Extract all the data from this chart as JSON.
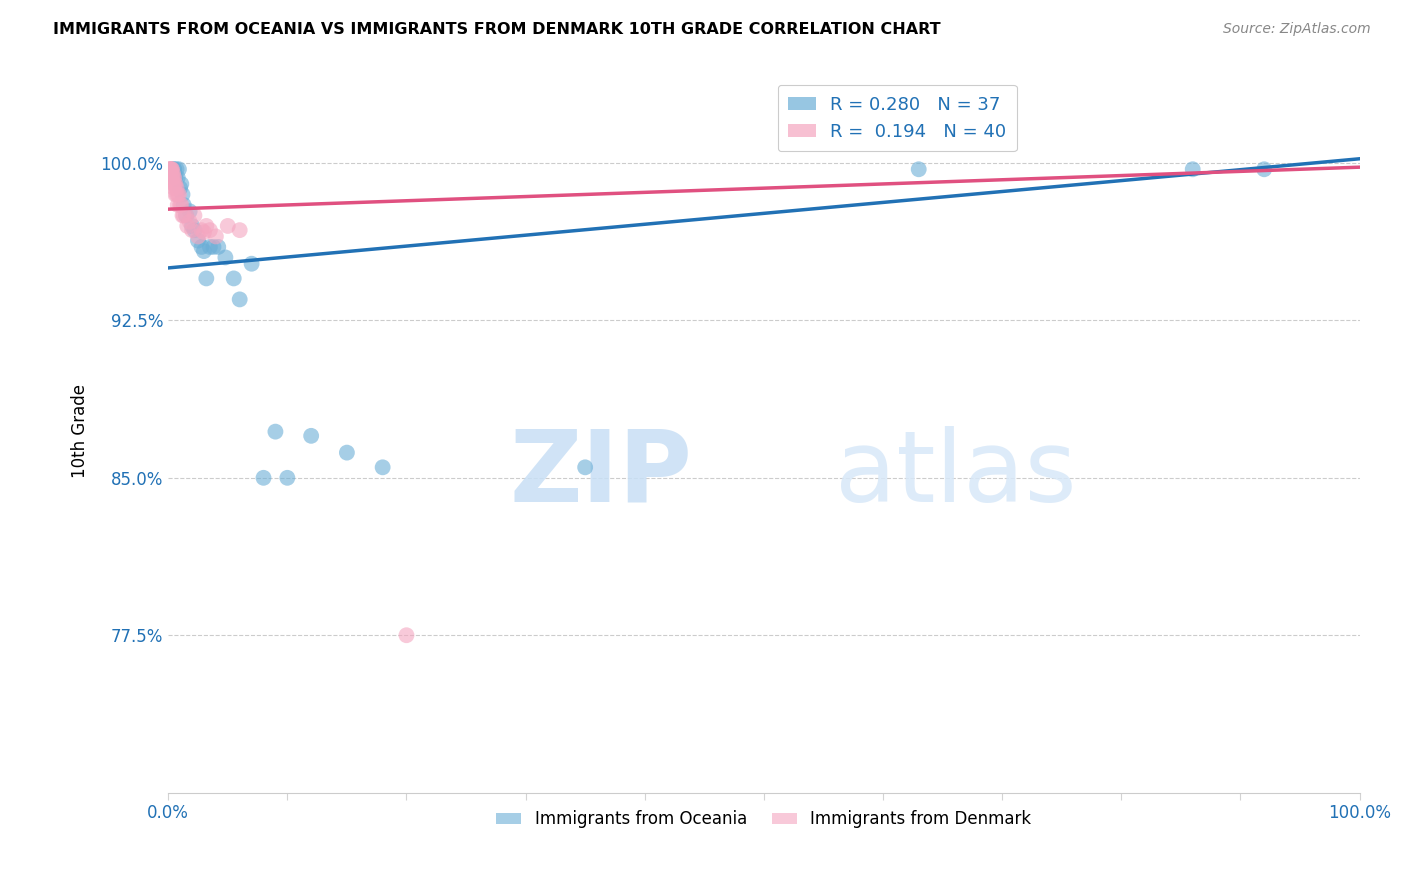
{
  "title": "IMMIGRANTS FROM OCEANIA VS IMMIGRANTS FROM DENMARK 10TH GRADE CORRELATION CHART",
  "source": "Source: ZipAtlas.com",
  "ylabel": "10th Grade",
  "y_ticks_labels": [
    "77.5%",
    "85.0%",
    "92.5%",
    "100.0%"
  ],
  "y_ticks_values": [
    0.775,
    0.85,
    0.925,
    1.0
  ],
  "x_lim": [
    0.0,
    1.0
  ],
  "y_lim": [
    0.7,
    1.045
  ],
  "oceania_color": "#6baed6",
  "denmark_color": "#f4a6c0",
  "oceania_line_color": "#2171b5",
  "denmark_line_color": "#e05080",
  "legend_R_oceania": "0.280",
  "legend_N_oceania": "37",
  "legend_R_denmark": "0.194",
  "legend_N_denmark": "40",
  "legend_label_oceania": "Immigrants from Oceania",
  "legend_label_denmark": "Immigrants from Denmark",
  "watermark_zip": "ZIP",
  "watermark_atlas": "atlas",
  "oceania_x": [
    0.003,
    0.005,
    0.005,
    0.006,
    0.007,
    0.008,
    0.009,
    0.01,
    0.011,
    0.012,
    0.013,
    0.015,
    0.018,
    0.02,
    0.022,
    0.025,
    0.028,
    0.03,
    0.032,
    0.035,
    0.038,
    0.042,
    0.048,
    0.055,
    0.06,
    0.07,
    0.08,
    0.09,
    0.1,
    0.12,
    0.15,
    0.18,
    0.35,
    0.63,
    0.86,
    0.92,
    0.005
  ],
  "oceania_y": [
    0.997,
    0.995,
    0.997,
    0.993,
    0.997,
    0.993,
    0.997,
    0.988,
    0.99,
    0.985,
    0.98,
    0.975,
    0.977,
    0.97,
    0.968,
    0.963,
    0.96,
    0.958,
    0.945,
    0.96,
    0.96,
    0.96,
    0.955,
    0.945,
    0.935,
    0.952,
    0.85,
    0.872,
    0.85,
    0.87,
    0.862,
    0.855,
    0.855,
    0.997,
    0.997,
    0.997,
    0.997
  ],
  "denmark_x": [
    0.001,
    0.001,
    0.002,
    0.002,
    0.002,
    0.003,
    0.003,
    0.003,
    0.004,
    0.004,
    0.004,
    0.005,
    0.005,
    0.005,
    0.006,
    0.006,
    0.007,
    0.007,
    0.008,
    0.008,
    0.009,
    0.01,
    0.011,
    0.012,
    0.013,
    0.015,
    0.016,
    0.018,
    0.02,
    0.022,
    0.025,
    0.028,
    0.03,
    0.032,
    0.035,
    0.04,
    0.05,
    0.06,
    0.2,
    0.003
  ],
  "denmark_y": [
    0.997,
    0.997,
    0.997,
    0.993,
    0.997,
    0.997,
    0.995,
    0.993,
    0.995,
    0.993,
    0.99,
    0.99,
    0.993,
    0.988,
    0.99,
    0.985,
    0.985,
    0.988,
    0.985,
    0.98,
    0.985,
    0.98,
    0.98,
    0.975,
    0.975,
    0.975,
    0.97,
    0.972,
    0.968,
    0.975,
    0.965,
    0.968,
    0.967,
    0.97,
    0.968,
    0.965,
    0.97,
    0.968,
    0.775,
    0.997
  ],
  "oceania_trendline_x": [
    0.0,
    1.0
  ],
  "oceania_trendline_y": [
    0.95,
    1.002
  ],
  "denmark_trendline_x": [
    0.0,
    1.0
  ],
  "denmark_trendline_y": [
    0.978,
    0.998
  ]
}
